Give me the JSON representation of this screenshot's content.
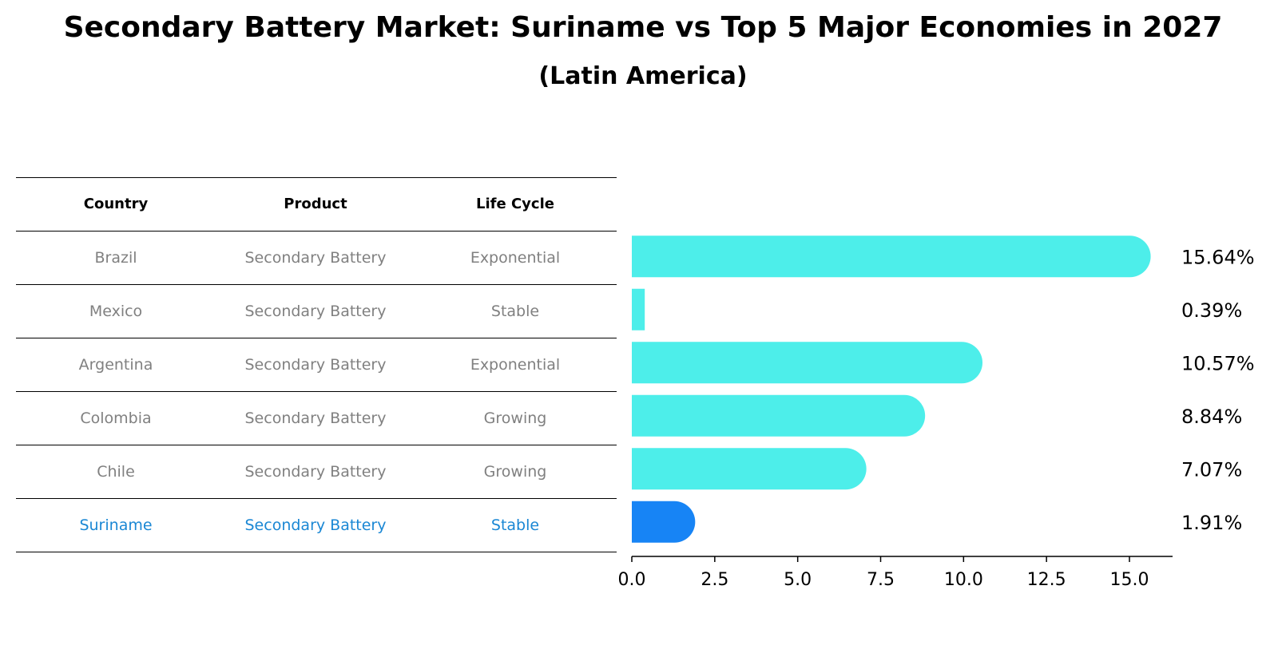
{
  "title": "Secondary Battery Market: Suriname vs Top 5 Major Economies in 2027",
  "subtitle": "(Latin America)",
  "table": {
    "headers": [
      "Country",
      "Product",
      "Life Cycle"
    ],
    "rows": [
      {
        "country": "Brazil",
        "product": "Secondary Battery",
        "life_cycle": "Exponential"
      },
      {
        "country": "Mexico",
        "product": "Secondary Battery",
        "life_cycle": "Stable"
      },
      {
        "country": "Argentina",
        "product": "Secondary Battery",
        "life_cycle": "Exponential"
      },
      {
        "country": "Colombia",
        "product": "Secondary Battery",
        "life_cycle": "Growing"
      },
      {
        "country": "Chile",
        "product": "Secondary Battery",
        "life_cycle": "Growing"
      },
      {
        "country": "Suriname",
        "product": "Secondary Battery",
        "life_cycle": "Stable"
      }
    ]
  },
  "colors": {
    "bar": "#4deeea",
    "highlight": "#1784f5",
    "row_text": "#808080",
    "highlight_text": "#1a87d4"
  },
  "chart_data": {
    "type": "bar",
    "orientation": "horizontal",
    "categories": [
      "Brazil",
      "Mexico",
      "Argentina",
      "Colombia",
      "Chile",
      "Suriname"
    ],
    "values": [
      15.64,
      0.39,
      10.57,
      8.84,
      7.07,
      1.91
    ],
    "value_labels": [
      "15.64%",
      "0.39%",
      "10.57%",
      "8.84%",
      "7.07%",
      "1.91%"
    ],
    "highlight": "Suriname",
    "xlim": [
      0,
      16.3
    ],
    "xticks": [
      0.0,
      2.5,
      5.0,
      7.5,
      10.0,
      12.5,
      15.0
    ],
    "xtick_labels": [
      "0.0",
      "2.5",
      "5.0",
      "7.5",
      "10.0",
      "12.5",
      "15.0"
    ],
    "xlabel": "",
    "ylabel": ""
  }
}
